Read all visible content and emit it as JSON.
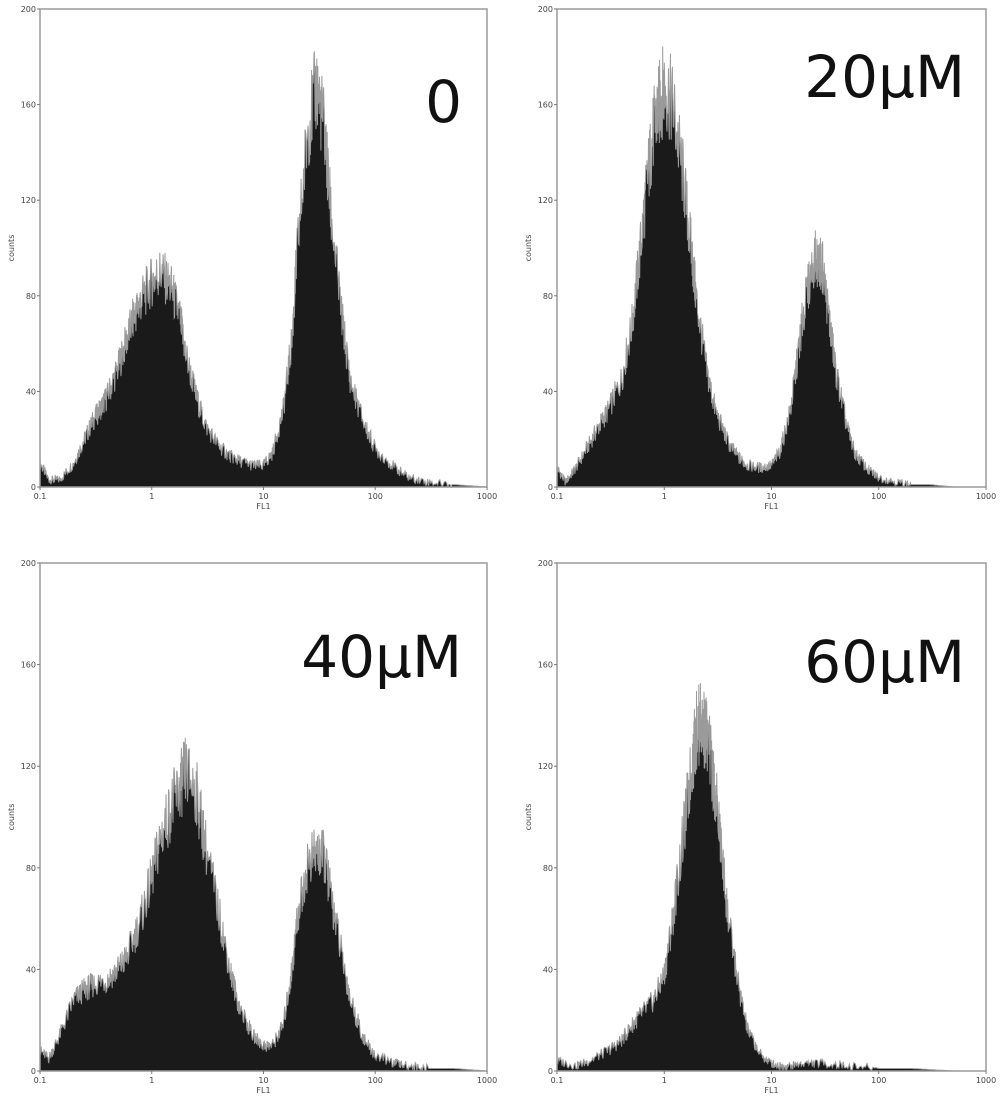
{
  "chart_data": [
    {
      "type": "area",
      "title": "0",
      "xlabel": "FL1",
      "ylabel": "counts",
      "xscale": "log",
      "xlim": [
        0.1,
        1000
      ],
      "ylim": [
        0,
        200
      ],
      "xticks": [
        "0.1",
        "1",
        "10",
        "100",
        "1000"
      ],
      "yticks": [
        "0",
        "40",
        "80",
        "120",
        "160",
        "200"
      ],
      "series": [
        {
          "x": [
            0.1,
            0.12,
            0.15,
            0.2,
            0.25,
            0.3,
            0.35,
            0.4,
            0.5,
            0.6,
            0.7,
            0.8,
            1,
            1.2,
            1.5,
            1.8,
            2,
            2.5,
            3,
            4,
            5,
            6,
            8,
            10,
            12,
            15,
            18,
            20,
            25,
            30,
            35,
            40,
            50,
            60,
            80,
            100,
            150,
            200,
            300,
            500,
            1000
          ],
          "values": [
            10,
            3,
            3,
            10,
            20,
            28,
            33,
            38,
            50,
            62,
            72,
            78,
            86,
            90,
            83,
            70,
            56,
            38,
            26,
            17,
            13,
            11,
            9,
            9,
            14,
            32,
            62,
            98,
            150,
            168,
            150,
            115,
            72,
            44,
            26,
            16,
            8,
            4,
            2,
            1,
            0
          ]
        }
      ]
    },
    {
      "type": "area",
      "title": "20μM",
      "xlabel": "FL1",
      "ylabel": "counts",
      "xscale": "log",
      "xlim": [
        0.1,
        1000
      ],
      "ylim": [
        0,
        200
      ],
      "xticks": [
        "0.1",
        "1",
        "10",
        "100",
        "1000"
      ],
      "yticks": [
        "0",
        "40",
        "80",
        "120",
        "160",
        "200"
      ],
      "series": [
        {
          "x": [
            0.1,
            0.12,
            0.15,
            0.2,
            0.25,
            0.3,
            0.4,
            0.5,
            0.6,
            0.7,
            0.8,
            0.9,
            1,
            1.2,
            1.5,
            1.8,
            2,
            2.5,
            3,
            4,
            5,
            6,
            8,
            10,
            12,
            15,
            18,
            20,
            25,
            30,
            35,
            40,
            50,
            60,
            80,
            100,
            150,
            200,
            300,
            500,
            1000
          ],
          "values": [
            8,
            2,
            8,
            18,
            26,
            32,
            45,
            68,
            100,
            130,
            150,
            160,
            168,
            160,
            130,
            98,
            78,
            48,
            32,
            18,
            12,
            9,
            8,
            9,
            15,
            32,
            58,
            74,
            96,
            92,
            68,
            48,
            26,
            14,
            7,
            4,
            2,
            1,
            1,
            0,
            0
          ]
        }
      ]
    },
    {
      "type": "area",
      "title": "40μM",
      "xlabel": "FL1",
      "ylabel": "counts",
      "xscale": "log",
      "xlim": [
        0.1,
        1000
      ],
      "ylim": [
        0,
        200
      ],
      "xticks": [
        "0.1",
        "1",
        "10",
        "100",
        "1000"
      ],
      "yticks": [
        "0",
        "40",
        "80",
        "120",
        "160",
        "200"
      ],
      "series": [
        {
          "x": [
            0.1,
            0.12,
            0.15,
            0.2,
            0.25,
            0.3,
            0.4,
            0.5,
            0.6,
            0.8,
            1,
            1.2,
            1.5,
            1.8,
            2,
            2.5,
            3,
            4,
            5,
            6,
            8,
            10,
            12,
            15,
            18,
            20,
            25,
            30,
            35,
            40,
            50,
            60,
            80,
            100,
            150,
            200,
            300,
            500,
            1000
          ],
          "values": [
            8,
            5,
            14,
            28,
            32,
            34,
            36,
            40,
            45,
            60,
            76,
            92,
            104,
            112,
            118,
            110,
            90,
            62,
            40,
            26,
            14,
            10,
            10,
            18,
            40,
            60,
            82,
            86,
            84,
            70,
            46,
            28,
            12,
            6,
            3,
            2,
            1,
            1,
            0
          ]
        }
      ]
    },
    {
      "type": "area",
      "title": "60μM",
      "xlabel": "FL1",
      "ylabel": "counts",
      "xscale": "log",
      "xlim": [
        0.1,
        1000
      ],
      "ylim": [
        0,
        200
      ],
      "xticks": [
        "0.1",
        "1",
        "10",
        "100",
        "1000"
      ],
      "yticks": [
        "0",
        "40",
        "80",
        "120",
        "160",
        "200"
      ],
      "series": [
        {
          "x": [
            0.1,
            0.15,
            0.2,
            0.3,
            0.4,
            0.5,
            0.6,
            0.8,
            1,
            1.2,
            1.5,
            1.8,
            2,
            2.2,
            2.5,
            3,
            3.5,
            4,
            5,
            6,
            8,
            10,
            12,
            15,
            20,
            30,
            50,
            100,
            200,
            500,
            1000
          ],
          "values": [
            4,
            2,
            4,
            8,
            12,
            18,
            22,
            28,
            38,
            60,
            92,
            120,
            134,
            138,
            132,
            110,
            82,
            58,
            32,
            16,
            6,
            3,
            2,
            2,
            3,
            3,
            2,
            1,
            1,
            0,
            0
          ]
        }
      ]
    }
  ]
}
